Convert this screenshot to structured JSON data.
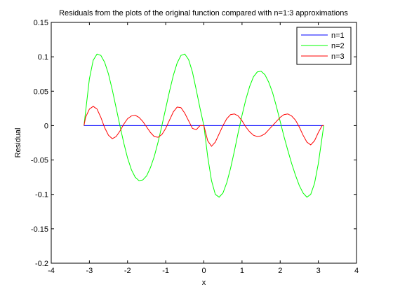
{
  "chart_data": {
    "type": "line",
    "title": "Residuals from the plots of the original function compared with n=1:3 approximations",
    "xlabel": "x",
    "ylabel": "Residual",
    "xlim": [
      -4,
      4
    ],
    "ylim": [
      -0.2,
      0.15
    ],
    "xticks": [
      -4,
      -3,
      -2,
      -1,
      0,
      1,
      2,
      3,
      4
    ],
    "yticks": [
      -0.2,
      -0.15,
      -0.1,
      -0.05,
      0,
      0.05,
      0.1,
      0.15
    ],
    "xtick_labels": [
      "-4",
      "-3",
      "-2",
      "-1",
      "0",
      "1",
      "2",
      "3",
      "4"
    ],
    "ytick_labels": [
      "-0.2",
      "-0.15",
      "-0.1",
      "-0.05",
      "0",
      "0.05",
      "0.1",
      "0.15"
    ],
    "grid": false,
    "legend_position": "top-right",
    "series": [
      {
        "name": "n=1",
        "color": "#0000ff",
        "x": [
          -3.1416,
          3.1416
        ],
        "y": [
          0,
          0
        ]
      },
      {
        "name": "n=2",
        "color": "#00ff00",
        "x": [
          -3.1416,
          -3.0,
          -2.9,
          -2.8,
          -2.7,
          -2.6,
          -2.5,
          -2.4,
          -2.3,
          -2.2,
          -2.1,
          -2.0,
          -1.9,
          -1.8,
          -1.7,
          -1.6,
          -1.5,
          -1.4,
          -1.3,
          -1.2,
          -1.1,
          -1.0,
          -0.9,
          -0.8,
          -0.7,
          -0.6,
          -0.5,
          -0.4,
          -0.3,
          -0.2,
          -0.1,
          0.0,
          0.1,
          0.2,
          0.3,
          0.4,
          0.5,
          0.6,
          0.7,
          0.8,
          0.9,
          1.0,
          1.1,
          1.2,
          1.3,
          1.4,
          1.5,
          1.6,
          1.7,
          1.8,
          1.9,
          2.0,
          2.1,
          2.2,
          2.3,
          2.4,
          2.5,
          2.6,
          2.7,
          2.8,
          2.9,
          3.0,
          3.1416
        ],
        "y": [
          0.0,
          0.068,
          0.095,
          0.104,
          0.102,
          0.092,
          0.075,
          0.052,
          0.026,
          0.0,
          -0.025,
          -0.047,
          -0.064,
          -0.075,
          -0.08,
          -0.079,
          -0.073,
          -0.061,
          -0.045,
          -0.024,
          0.0,
          0.025,
          0.05,
          0.073,
          0.091,
          0.102,
          0.104,
          0.096,
          0.078,
          0.052,
          0.025,
          0.0,
          -0.045,
          -0.08,
          -0.1,
          -0.104,
          -0.098,
          -0.083,
          -0.062,
          -0.037,
          -0.01,
          0.015,
          0.038,
          0.057,
          0.071,
          0.078,
          0.079,
          0.074,
          0.063,
          0.048,
          0.028,
          0.006,
          -0.016,
          -0.036,
          -0.055,
          -0.072,
          -0.087,
          -0.098,
          -0.104,
          -0.1,
          -0.084,
          -0.055,
          0.0
        ]
      },
      {
        "name": "n=3",
        "color": "#ff0000",
        "x": [
          -3.1416,
          -3.1,
          -3.0,
          -2.9,
          -2.8,
          -2.7,
          -2.6,
          -2.5,
          -2.4,
          -2.3,
          -2.2,
          -2.1,
          -2.0,
          -1.9,
          -1.8,
          -1.7,
          -1.6,
          -1.5,
          -1.4,
          -1.3,
          -1.2,
          -1.1,
          -1.0,
          -0.9,
          -0.8,
          -0.7,
          -0.6,
          -0.5,
          -0.4,
          -0.3,
          -0.2,
          -0.1,
          0.0,
          0.1,
          0.2,
          0.3,
          0.4,
          0.5,
          0.6,
          0.7,
          0.8,
          0.9,
          1.0,
          1.1,
          1.2,
          1.3,
          1.4,
          1.5,
          1.6,
          1.7,
          1.8,
          1.9,
          2.0,
          2.1,
          2.2,
          2.3,
          2.4,
          2.5,
          2.6,
          2.7,
          2.8,
          2.9,
          3.0,
          3.1,
          3.1416
        ],
        "y": [
          0.0,
          0.012,
          0.024,
          0.028,
          0.024,
          0.012,
          -0.003,
          -0.014,
          -0.019,
          -0.016,
          -0.008,
          0.002,
          0.01,
          0.014,
          0.015,
          0.012,
          0.006,
          -0.002,
          -0.01,
          -0.016,
          -0.017,
          -0.013,
          -0.004,
          0.008,
          0.02,
          0.027,
          0.026,
          0.018,
          0.007,
          -0.004,
          -0.006,
          0.0,
          0.0,
          -0.022,
          -0.03,
          -0.024,
          -0.012,
          0.0,
          0.01,
          0.016,
          0.017,
          0.014,
          0.007,
          -0.002,
          -0.009,
          -0.014,
          -0.016,
          -0.015,
          -0.012,
          -0.006,
          0.0,
          0.006,
          0.012,
          0.016,
          0.017,
          0.014,
          0.008,
          -0.002,
          -0.014,
          -0.024,
          -0.028,
          -0.022,
          -0.01,
          0.0,
          0.0
        ]
      }
    ]
  }
}
